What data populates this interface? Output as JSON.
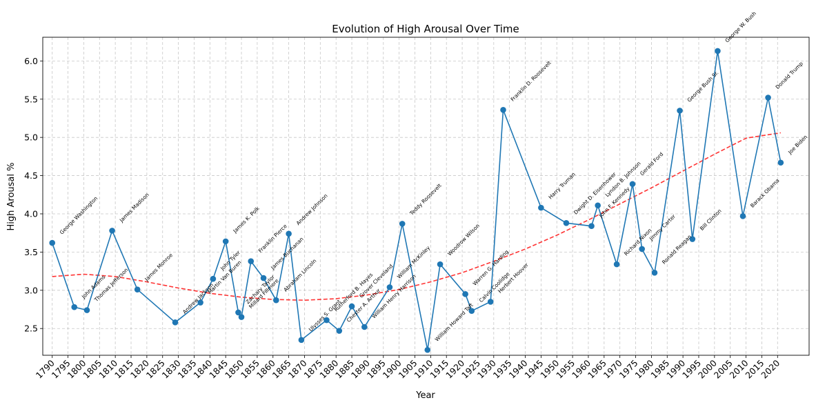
{
  "chart_data": {
    "type": "line",
    "title": "Evolution of High Arousal Over Time",
    "xlabel": "Year",
    "ylabel": "High Arousal %",
    "xlim": [
      1787,
      2030
    ],
    "ylim": [
      2.15,
      6.31
    ],
    "x_ticks": [
      1790,
      1795,
      1800,
      1805,
      1810,
      1815,
      1820,
      1825,
      1830,
      1835,
      1840,
      1845,
      1850,
      1855,
      1860,
      1865,
      1870,
      1875,
      1880,
      1885,
      1890,
      1895,
      1900,
      1905,
      1910,
      1915,
      1920,
      1925,
      1930,
      1935,
      1940,
      1945,
      1950,
      1955,
      1960,
      1965,
      1970,
      1975,
      1980,
      1985,
      1990,
      1995,
      2000,
      2005,
      2010,
      2015,
      2020
    ],
    "y_ticks": [
      2.5,
      3.0,
      3.5,
      4.0,
      4.5,
      5.0,
      5.5,
      6.0
    ],
    "y_tick_labels": [
      "2.5",
      "3.0",
      "3.5",
      "4.0",
      "4.5",
      "5.0",
      "5.5",
      "6.0"
    ],
    "grid": true,
    "series": [
      {
        "color": "#1f77b4",
        "marker": "circle",
        "points": [
          {
            "x": 1790,
            "y": 3.62,
            "label": "George Washington"
          },
          {
            "x": 1797,
            "y": 2.78,
            "label": "John Adams"
          },
          {
            "x": 1801,
            "y": 2.74,
            "label": "Thomas Jefferson"
          },
          {
            "x": 1809,
            "y": 3.78,
            "label": "James Madison"
          },
          {
            "x": 1817,
            "y": 3.01,
            "label": "James Monroe"
          },
          {
            "x": 1829,
            "y": 2.58,
            "label": "Andrew Jackson"
          },
          {
            "x": 1837,
            "y": 2.84,
            "label": "Martin Van Buren"
          },
          {
            "x": 1841,
            "y": 3.15,
            "label": "John Tyler"
          },
          {
            "x": 1845,
            "y": 3.64,
            "label": "James K. Polk"
          },
          {
            "x": 1849,
            "y": 2.71,
            "label": "Zachary Taylor"
          },
          {
            "x": 1850,
            "y": 2.65,
            "label": "Millard Fillmore"
          },
          {
            "x": 1853,
            "y": 3.38,
            "label": "Franklin Pierce"
          },
          {
            "x": 1857,
            "y": 3.16,
            "label": "James Buchanan"
          },
          {
            "x": 1861,
            "y": 2.87,
            "label": "Abraham Lincoln"
          },
          {
            "x": 1865,
            "y": 3.74,
            "label": "Andrew Johnson"
          },
          {
            "x": 1869,
            "y": 2.35,
            "label": "Ulysses S. Grant"
          },
          {
            "x": 1877,
            "y": 2.61,
            "label": "Rutherford B. Hayes"
          },
          {
            "x": 1881,
            "y": 2.47,
            "label": "Chester A. Arthur"
          },
          {
            "x": 1885,
            "y": 2.79,
            "label": "Grover Cleveland"
          },
          {
            "x": 1889,
            "y": 2.52,
            "label": "William Henry Harrison"
          },
          {
            "x": 1897,
            "y": 3.04,
            "label": "William McKinley"
          },
          {
            "x": 1901,
            "y": 3.87,
            "label": "Teddy Roosevelt"
          },
          {
            "x": 1909,
            "y": 2.22,
            "label": "William Howard Taft"
          },
          {
            "x": 1913,
            "y": 3.34,
            "label": "Woodrow Wilson"
          },
          {
            "x": 1921,
            "y": 2.95,
            "label": "Warren G. Harding"
          },
          {
            "x": 1923,
            "y": 2.73,
            "label": "Calvin Coolidge"
          },
          {
            "x": 1929,
            "y": 2.85,
            "label": "Herbert Hoover"
          },
          {
            "x": 1933,
            "y": 5.36,
            "label": "Franklin D. Roosevelt"
          },
          {
            "x": 1945,
            "y": 4.08,
            "label": "Harry Truman"
          },
          {
            "x": 1953,
            "y": 3.88,
            "label": "Dwight D. Eisenhower"
          },
          {
            "x": 1961,
            "y": 3.84,
            "label": "John F. Kennedy"
          },
          {
            "x": 1963,
            "y": 4.11,
            "label": "Lyndon B. Johnson"
          },
          {
            "x": 1969,
            "y": 3.34,
            "label": "Richard Nixon"
          },
          {
            "x": 1974,
            "y": 4.39,
            "label": "Gerald Ford"
          },
          {
            "x": 1977,
            "y": 3.54,
            "label": "Jimmy Carter"
          },
          {
            "x": 1981,
            "y": 3.23,
            "label": "Ronald Reagan"
          },
          {
            "x": 1989,
            "y": 5.35,
            "label": "George Bush Sr."
          },
          {
            "x": 1993,
            "y": 3.67,
            "label": "Bill Clinton"
          },
          {
            "x": 2001,
            "y": 6.13,
            "label": "George W. Bush"
          },
          {
            "x": 2009,
            "y": 3.97,
            "label": "Barack Obama"
          },
          {
            "x": 2017,
            "y": 5.52,
            "label": "Donald Trump"
          },
          {
            "x": 2021,
            "y": 4.67,
            "label": "Joe Biden"
          }
        ]
      },
      {
        "color": "#ff0000",
        "style": "dashed",
        "points": [
          {
            "x": 1790,
            "y": 3.18
          },
          {
            "x": 1800,
            "y": 3.21
          },
          {
            "x": 1810,
            "y": 3.18
          },
          {
            "x": 1820,
            "y": 3.11
          },
          {
            "x": 1830,
            "y": 3.03
          },
          {
            "x": 1840,
            "y": 2.96
          },
          {
            "x": 1850,
            "y": 2.91
          },
          {
            "x": 1860,
            "y": 2.88
          },
          {
            "x": 1870,
            "y": 2.87
          },
          {
            "x": 1880,
            "y": 2.89
          },
          {
            "x": 1890,
            "y": 2.94
          },
          {
            "x": 1900,
            "y": 3.01
          },
          {
            "x": 1910,
            "y": 3.11
          },
          {
            "x": 1920,
            "y": 3.23
          },
          {
            "x": 1930,
            "y": 3.38
          },
          {
            "x": 1940,
            "y": 3.54
          },
          {
            "x": 1950,
            "y": 3.72
          },
          {
            "x": 1960,
            "y": 3.92
          },
          {
            "x": 1970,
            "y": 4.13
          },
          {
            "x": 1980,
            "y": 4.34
          },
          {
            "x": 1990,
            "y": 4.56
          },
          {
            "x": 2000,
            "y": 4.78
          },
          {
            "x": 2010,
            "y": 4.99
          },
          {
            "x": 2021,
            "y": 5.06
          }
        ]
      }
    ]
  }
}
